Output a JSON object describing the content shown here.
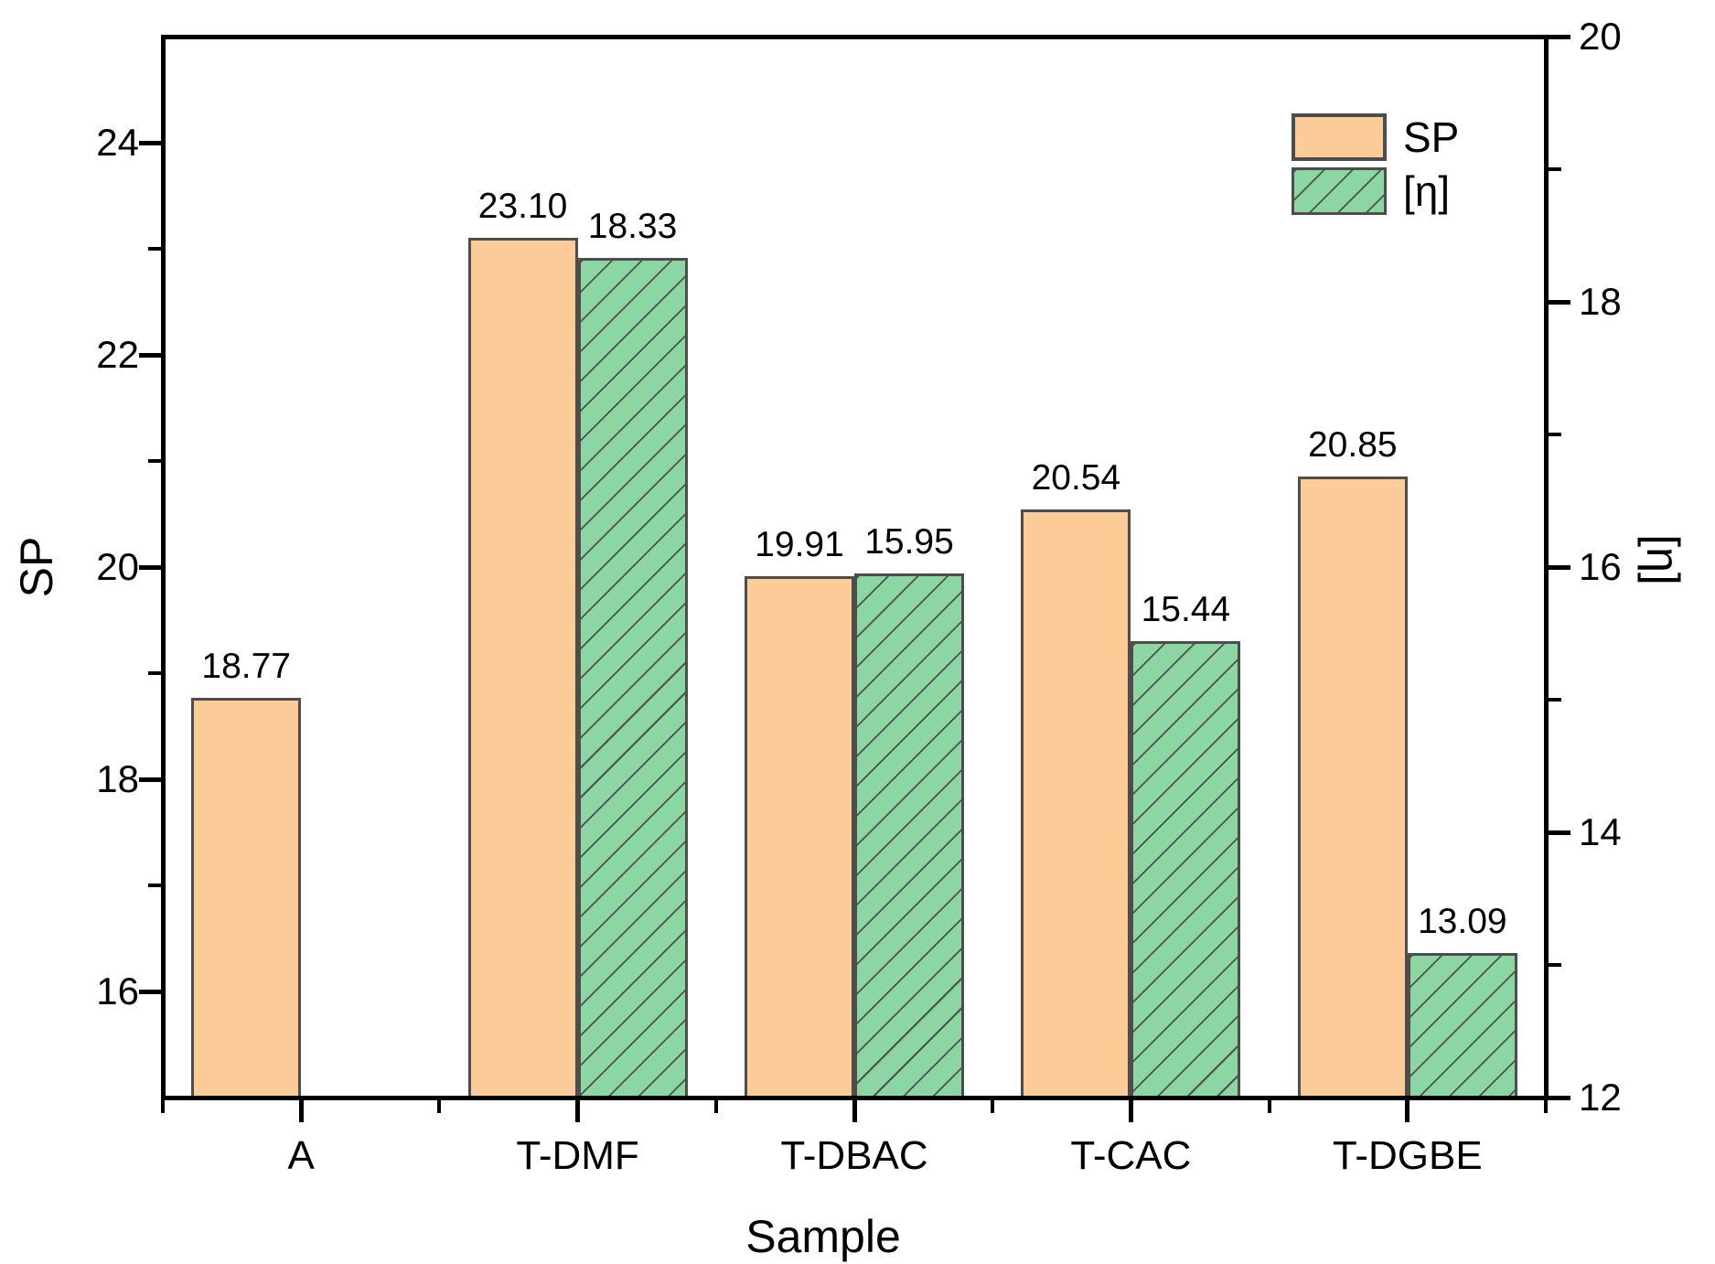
{
  "chart_data": {
    "type": "bar",
    "categories": [
      "A",
      "T-DMF",
      "T-DBAC",
      "T-CAC",
      "T-DGBE"
    ],
    "series": [
      {
        "name": "SP",
        "axis": "left",
        "values": [
          18.77,
          23.1,
          19.91,
          20.54,
          20.85
        ],
        "value_labels": [
          "18.77",
          "23.10",
          "19.91",
          "20.54",
          "20.85"
        ],
        "fill": "#FBCB98",
        "hatched": false
      },
      {
        "name": "[η]",
        "axis": "right",
        "values": [
          null,
          18.33,
          15.95,
          15.44,
          13.09
        ],
        "value_labels": [
          "",
          "18.33",
          "15.95",
          "15.44",
          "13.09"
        ],
        "fill": "#8CD6A3",
        "hatched": true
      }
    ],
    "left_axis": {
      "label": "SP",
      "min": 15,
      "max": 25,
      "major_ticks": [
        16,
        18,
        20,
        22,
        24
      ],
      "minor_ticks": [
        17,
        19,
        21,
        23
      ]
    },
    "right_axis": {
      "label": "[η]",
      "min": 12,
      "max": 20,
      "major_ticks": [
        12,
        14,
        16,
        18,
        20
      ],
      "minor_ticks": [
        13,
        15,
        17,
        19
      ]
    },
    "x_axis": {
      "label": "Sample"
    },
    "legend": {
      "position": "top-right",
      "items": [
        {
          "label": "SP",
          "swatch": "solid-orange"
        },
        {
          "label": "[η]",
          "swatch": "hatched-green"
        }
      ]
    },
    "colors": {
      "sp_fill": "#FBCB98",
      "eta_fill": "#8CD6A3",
      "bar_border": "#4D4D4D",
      "hatch_line": "#444444",
      "axis": "#000000",
      "text": "#000000"
    }
  }
}
